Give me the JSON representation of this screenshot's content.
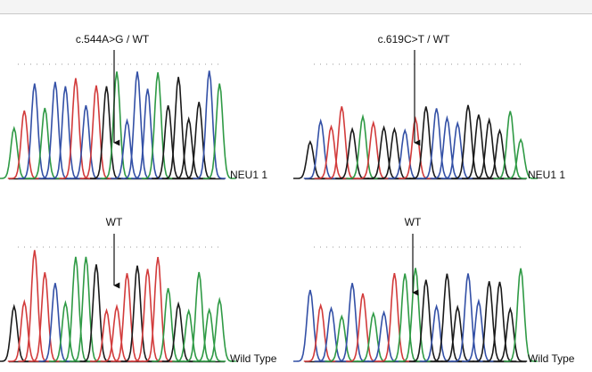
{
  "panels": [
    {
      "mutation_label": "c.544A>G / WT",
      "sample_label": "NEU1 1"
    },
    {
      "mutation_label": "c.619C>T / WT",
      "sample_label": "NEU1 1"
    },
    {
      "mutation_label": "WT",
      "sample_label": "Wild Type"
    },
    {
      "mutation_label": "WT",
      "sample_label": "Wild Type"
    }
  ]
}
